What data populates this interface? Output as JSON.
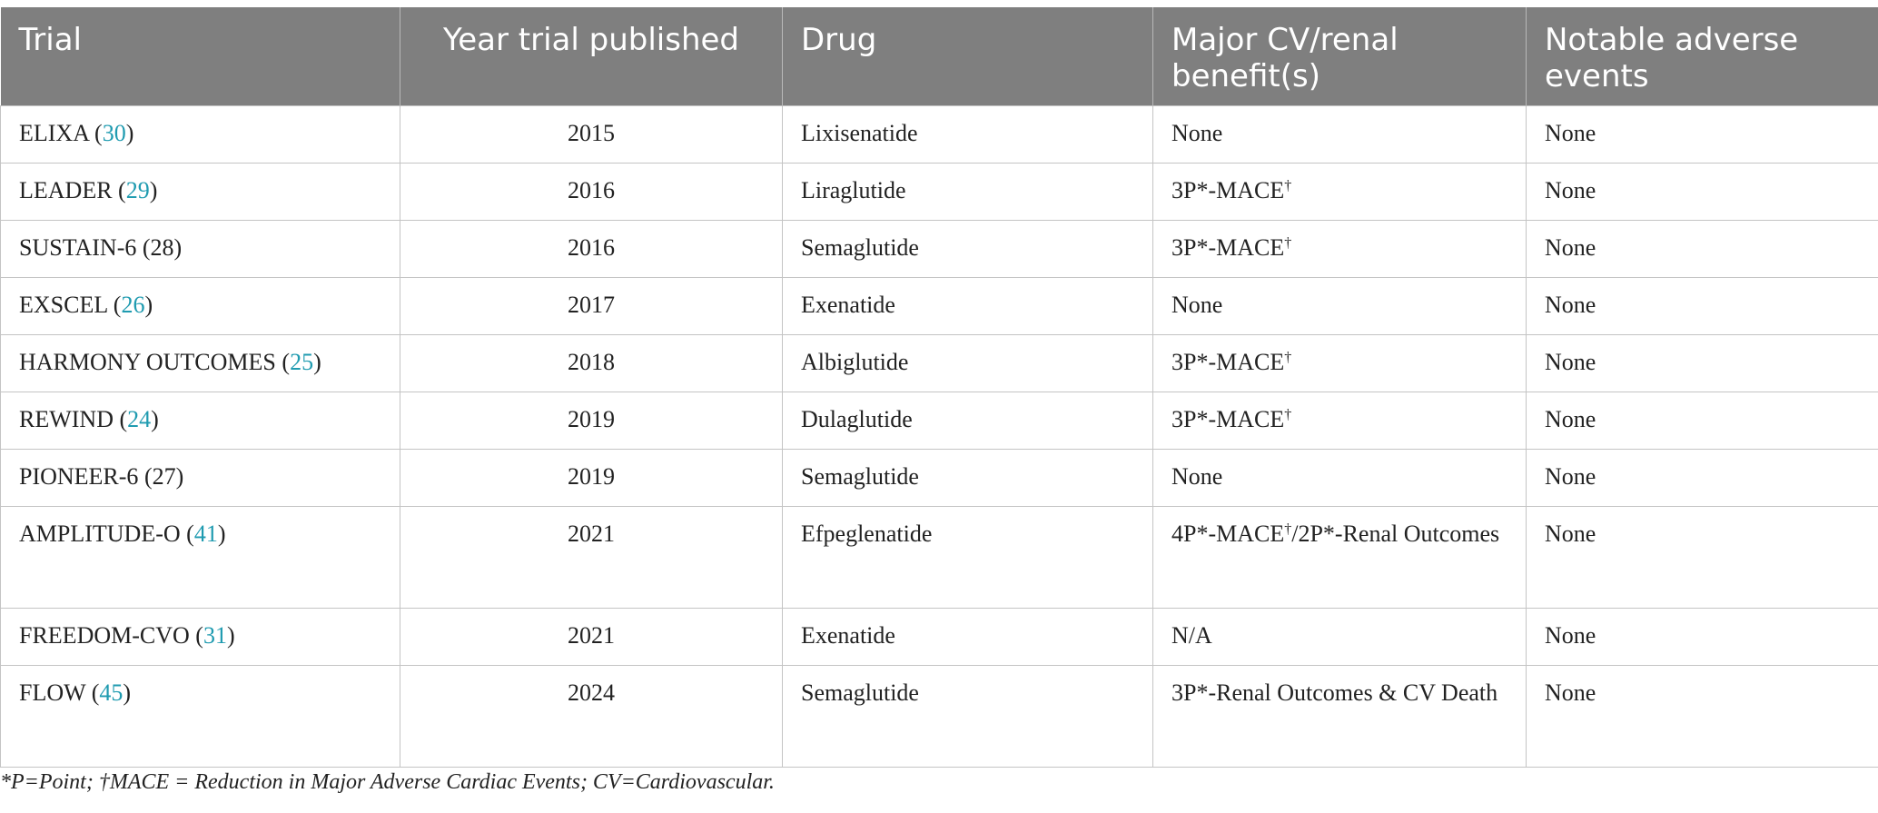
{
  "table": {
    "headers": [
      "Trial",
      "Year trial published",
      "Drug",
      "Major CV/renal benefit(s)",
      "Notable adverse events"
    ],
    "rows": [
      {
        "trial": "ELIXA",
        "ref": "30",
        "ref_linked": true,
        "year": "2015",
        "drug": "Lixisenatide",
        "benefit_a": "None",
        "sup_a": "",
        "benefit_b": "",
        "adverse": "None"
      },
      {
        "trial": "LEADER",
        "ref": "29",
        "ref_linked": true,
        "year": "2016",
        "drug": "Liraglutide",
        "benefit_a": "3P*-MACE",
        "sup_a": "†",
        "benefit_b": "",
        "adverse": "None"
      },
      {
        "trial": "SUSTAIN-6",
        "ref": "28",
        "ref_linked": false,
        "year": "2016",
        "drug": "Semaglutide",
        "benefit_a": "3P*-MACE",
        "sup_a": "†",
        "benefit_b": "",
        "adverse": "None"
      },
      {
        "trial": "EXSCEL",
        "ref": "26",
        "ref_linked": true,
        "year": "2017",
        "drug": "Exenatide",
        "benefit_a": "None",
        "sup_a": "",
        "benefit_b": "",
        "adverse": "None"
      },
      {
        "trial": "HARMONY OUTCOMES",
        "ref": "25",
        "ref_linked": true,
        "year": "2018",
        "drug": "Albiglutide",
        "benefit_a": "3P*-MACE",
        "sup_a": "†",
        "benefit_b": "",
        "adverse": "None"
      },
      {
        "trial": "REWIND",
        "ref": "24",
        "ref_linked": true,
        "year": "2019",
        "drug": "Dulaglutide",
        "benefit_a": "3P*-MACE",
        "sup_a": "†",
        "benefit_b": "",
        "adverse": "None"
      },
      {
        "trial": "PIONEER-6",
        "ref": "27",
        "ref_linked": false,
        "year": "2019",
        "drug": "Semaglutide",
        "benefit_a": "None",
        "sup_a": "",
        "benefit_b": "",
        "adverse": "None"
      },
      {
        "trial": "AMPLITUDE-O",
        "ref": "41",
        "ref_linked": true,
        "year": "2021",
        "drug": "Efpeglenatide",
        "benefit_a": "4P*-MACE",
        "sup_a": "†",
        "benefit_b": "/2P*-Renal Outcomes",
        "adverse": "None"
      },
      {
        "trial": "FREEDOM-CVO",
        "ref": "31",
        "ref_linked": true,
        "year": "2021",
        "drug": "Exenatide",
        "benefit_a": "N/A",
        "sup_a": "",
        "benefit_b": "",
        "adverse": "None"
      },
      {
        "trial": "FLOW",
        "ref": "45",
        "ref_linked": true,
        "year": "2024",
        "drug": "Semaglutide",
        "benefit_a": "3P*-Renal Outcomes & CV Death",
        "sup_a": "",
        "benefit_b": "",
        "adverse": "None"
      }
    ]
  },
  "footnote": "*P=Point; †MACE = Reduction in Major Adverse Cardiac Events; CV=Cardiovascular.",
  "colors": {
    "header_bg": "#7f7f7f",
    "header_text": "#ffffff",
    "ref_link": "#1f9bb0",
    "border": "#c4c4c4"
  }
}
